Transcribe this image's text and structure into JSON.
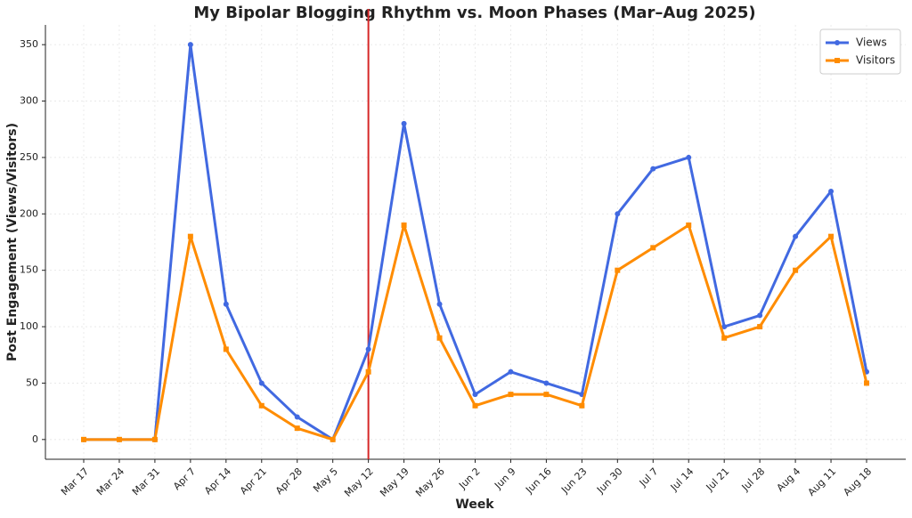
{
  "chart_data": {
    "type": "line",
    "title": "My Bipolar Blogging Rhythm vs. Moon Phases (Mar–Aug 2025)",
    "x_label": "Week",
    "y_label": "Post Engagement (Views/Visitors)",
    "categories": [
      "Mar 17",
      "Mar 24",
      "Mar 31",
      "Apr 7",
      "Apr 14",
      "Apr 21",
      "Apr 28",
      "May 5",
      "May 12",
      "May 19",
      "May 26",
      "Jun 2",
      "Jun 9",
      "Jun 16",
      "Jun 23",
      "Jun 30",
      "Jul 7",
      "Jul 14",
      "Jul 21",
      "Jul 28",
      "Aug 4",
      "Aug 11",
      "Aug 18"
    ],
    "series": [
      {
        "name": "Views",
        "color": "#4169e1",
        "marker": "circle",
        "values": [
          0,
          0,
          0,
          350,
          120,
          50,
          20,
          0,
          80,
          280,
          120,
          40,
          60,
          50,
          40,
          200,
          240,
          250,
          100,
          110,
          180,
          220,
          60
        ]
      },
      {
        "name": "Visitors",
        "color": "#ff8c00",
        "marker": "square",
        "values": [
          0,
          0,
          0,
          180,
          80,
          30,
          10,
          0,
          60,
          190,
          90,
          30,
          40,
          40,
          30,
          150,
          170,
          190,
          90,
          100,
          150,
          180,
          50
        ]
      }
    ],
    "ylim": [
      -17.5,
      367.5
    ],
    "yticks": [
      0,
      50,
      100,
      150,
      200,
      250,
      300,
      350
    ],
    "grid": true,
    "legend": "upper right",
    "reference_line": {
      "x": "May 12",
      "color": "#d62728"
    }
  }
}
